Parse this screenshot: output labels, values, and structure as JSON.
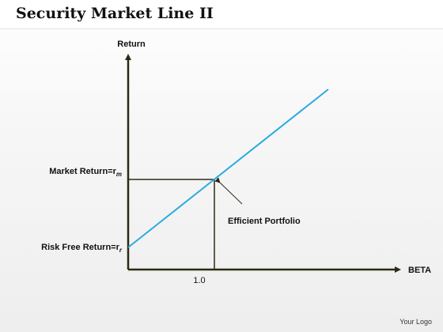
{
  "title": "Security Market Line II",
  "diagram": {
    "y_axis_label": "Return",
    "x_axis_label": "BETA",
    "market_return_label": "Market Return=r",
    "market_return_sub": "m",
    "risk_free_label": "Risk Free Return=r",
    "risk_free_sub": "r",
    "beta_tick_label": "1.0",
    "efficient_portfolio_label": "Efficient Portfolio"
  },
  "colors": {
    "axis": "#2d2a14",
    "line": "#29abe2",
    "text": "#111111"
  },
  "footer": {
    "logo_text": "Your Logo"
  }
}
